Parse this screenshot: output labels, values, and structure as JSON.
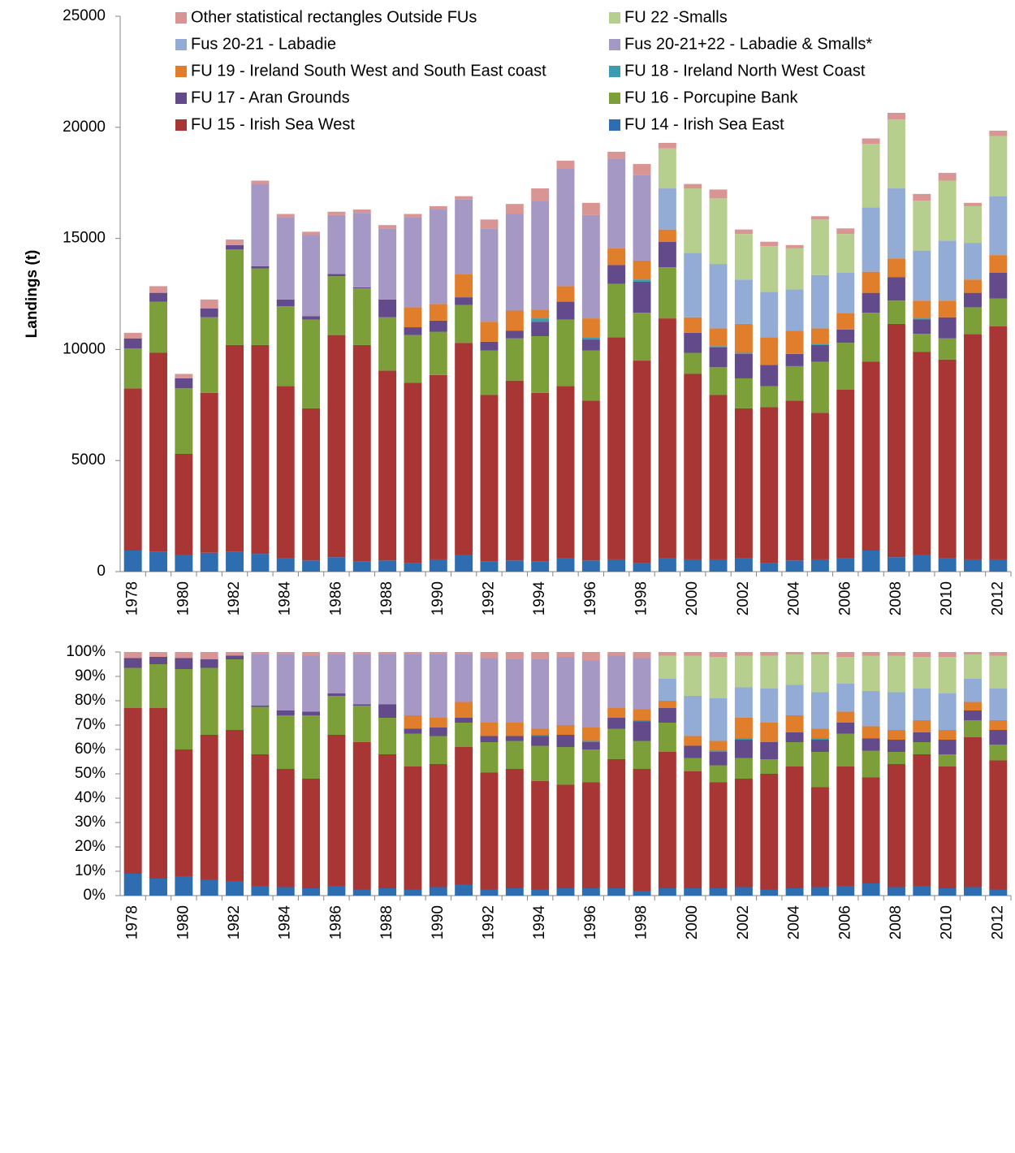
{
  "chart_data": [
    {
      "type": "stacked-bar",
      "ylabel": "Landings (t)",
      "legend": "top",
      "categories": [
        "1978",
        null,
        "1980",
        null,
        "1982",
        null,
        "1984",
        null,
        "1986",
        null,
        "1988",
        null,
        "1990",
        null,
        "1992",
        null,
        "1994",
        null,
        "1996",
        null,
        "1998",
        null,
        "2000",
        null,
        "2002",
        null,
        "2004",
        null,
        "2006",
        null,
        "2008",
        null,
        "2010",
        null,
        "2012"
      ],
      "ylim": [
        0,
        25000
      ],
      "yticks": [
        0,
        5000,
        10000,
        15000,
        20000,
        25000
      ],
      "series": [
        {
          "name": "FU 14 - Irish Sea East",
          "color": "#2e6db0",
          "values": [
            950,
            900,
            750,
            850,
            900,
            800,
            600,
            500,
            650,
            450,
            500,
            400,
            550,
            750,
            450,
            500,
            450,
            600,
            500,
            550,
            400,
            600,
            550,
            550,
            600,
            400,
            500,
            550,
            600,
            950,
            650,
            750,
            600,
            550,
            550
          ]
        },
        {
          "name": "FU 15 - Irish Sea West",
          "color": "#a83634",
          "values": [
            7300,
            8950,
            4550,
            7200,
            9300,
            9400,
            7750,
            6850,
            10000,
            9750,
            8550,
            8100,
            8300,
            9550,
            7500,
            8100,
            7600,
            7750,
            7200,
            10000,
            9100,
            10800,
            8350,
            7400,
            6750,
            7000,
            7200,
            6600,
            7600,
            8500,
            10500,
            9150,
            8950,
            10150,
            10500
          ]
        },
        {
          "name": "FU 16 - Porcupine Bank",
          "color": "#7d9f3a",
          "values": [
            1800,
            2300,
            2950,
            3400,
            4300,
            3450,
            3600,
            4000,
            2650,
            2550,
            2400,
            2150,
            1950,
            1700,
            2000,
            1900,
            2550,
            3000,
            2250,
            2400,
            2150,
            2300,
            950,
            1250,
            1350,
            950,
            1550,
            2300,
            2100,
            2200,
            1050,
            800,
            950,
            1200,
            1250
          ]
        },
        {
          "name": "FU 17 - Aran Grounds",
          "color": "#624a8b",
          "values": [
            450,
            400,
            450,
            400,
            200,
            100,
            300,
            150,
            100,
            50,
            800,
            350,
            500,
            350,
            400,
            350,
            650,
            800,
            500,
            850,
            1400,
            1150,
            900,
            900,
            1100,
            950,
            550,
            750,
            600,
            900,
            1050,
            650,
            950,
            650,
            1150
          ]
        },
        {
          "name": "FU 18 - Ireland North West Coast",
          "color": "#3a9cb0",
          "values": [
            0,
            0,
            0,
            0,
            0,
            0,
            0,
            0,
            0,
            0,
            0,
            0,
            0,
            0,
            0,
            0,
            150,
            0,
            100,
            0,
            100,
            0,
            0,
            50,
            50,
            0,
            0,
            50,
            0,
            0,
            0,
            50,
            0,
            0,
            0
          ]
        },
        {
          "name": "FU 19 - Ireland South West and South  East coast",
          "color": "#e07e2c",
          "values": [
            0,
            0,
            0,
            0,
            0,
            0,
            0,
            0,
            0,
            0,
            0,
            900,
            750,
            1050,
            900,
            900,
            400,
            700,
            850,
            750,
            850,
            550,
            700,
            800,
            1300,
            1250,
            1050,
            700,
            750,
            950,
            850,
            800,
            750,
            600,
            800
          ]
        },
        {
          "name": "Fus 20-21+22 - Labadie & Smalls*",
          "color": "#a698c4",
          "values": [
            0,
            0,
            0,
            0,
            0,
            3700,
            3700,
            3650,
            2650,
            3350,
            3200,
            4050,
            4250,
            3350,
            4200,
            4350,
            4900,
            5300,
            4650,
            4050,
            3850,
            0,
            0,
            0,
            0,
            0,
            0,
            0,
            0,
            0,
            0,
            0,
            0,
            0,
            0
          ]
        },
        {
          "name": "Fus 20-21 - Labadie",
          "color": "#93acd6",
          "values": [
            0,
            0,
            0,
            0,
            0,
            0,
            0,
            0,
            0,
            0,
            0,
            0,
            0,
            0,
            0,
            0,
            0,
            0,
            0,
            0,
            0,
            1850,
            2900,
            2900,
            2000,
            2050,
            1850,
            2400,
            1800,
            2900,
            3150,
            2250,
            2700,
            1650,
            2650
          ]
        },
        {
          "name": "FU 22  -Smalls",
          "color": "#b6cf8e",
          "values": [
            0,
            0,
            0,
            0,
            0,
            0,
            0,
            0,
            0,
            0,
            0,
            0,
            0,
            0,
            0,
            0,
            0,
            0,
            0,
            0,
            0,
            1800,
            2900,
            2950,
            2050,
            2050,
            1850,
            2500,
            1750,
            2850,
            3100,
            2250,
            2700,
            1650,
            2700
          ]
        },
        {
          "name": "Other statistical rectangles Outside FUs",
          "color": "#d99594",
          "values": [
            250,
            300,
            200,
            400,
            250,
            150,
            150,
            150,
            150,
            150,
            150,
            150,
            150,
            150,
            400,
            450,
            550,
            350,
            550,
            300,
            500,
            250,
            200,
            400,
            200,
            200,
            150,
            150,
            250,
            250,
            300,
            300,
            350,
            150,
            250
          ]
        }
      ]
    },
    {
      "type": "stacked-bar",
      "categories": [
        "1978",
        null,
        "1980",
        null,
        "1982",
        null,
        "1984",
        null,
        "1986",
        null,
        "1988",
        null,
        "1990",
        null,
        "1992",
        null,
        "1994",
        null,
        "1996",
        null,
        "1998",
        null,
        "2000",
        null,
        "2002",
        null,
        "2004",
        null,
        "2006",
        null,
        "2008",
        null,
        "2010",
        null,
        "2012"
      ],
      "ylim": [
        0,
        100
      ],
      "yticks": [
        {
          "value": 0,
          "label": "0%"
        },
        {
          "value": 10,
          "label": "10%"
        },
        {
          "value": 20,
          "label": "20%"
        },
        {
          "value": 30,
          "label": "30%"
        },
        {
          "value": 40,
          "label": "40%"
        },
        {
          "value": 50,
          "label": "50%"
        },
        {
          "value": 60,
          "label": "60%"
        },
        {
          "value": 70,
          "label": "70%"
        },
        {
          "value": 80,
          "label": "80%"
        },
        {
          "value": 90,
          "label": "90%"
        },
        {
          "value": 100,
          "label": "100%"
        }
      ],
      "series": [
        {
          "color": "#2e6db0",
          "values": [
            9,
            7,
            8,
            6.5,
            6,
            4,
            3.5,
            3,
            4,
            2.5,
            3,
            2.5,
            3.5,
            4.5,
            2.5,
            3,
            2.5,
            3,
            3,
            3,
            2,
            3,
            3,
            3,
            3.5,
            2.5,
            3,
            3.5,
            4,
            5,
            3.5,
            4,
            3,
            3.5,
            2.5
          ]
        },
        {
          "color": "#a83634",
          "values": [
            68,
            70,
            52,
            59.5,
            62,
            54,
            48.5,
            45,
            62,
            60.5,
            55,
            50.5,
            50.5,
            56.5,
            48,
            49,
            44.5,
            42.5,
            43.5,
            53,
            50,
            56,
            48,
            43.5,
            44.5,
            47.5,
            50,
            41,
            49,
            43.5,
            50.5,
            54,
            50,
            61.5,
            53
          ]
        },
        {
          "color": "#7d9f3a",
          "values": [
            16.5,
            18,
            33,
            27.5,
            29,
            19.5,
            22,
            26,
            16,
            15,
            15,
            13.5,
            11.5,
            10,
            12.5,
            11.5,
            14.5,
            15.5,
            13.5,
            12.5,
            11.5,
            12,
            5.5,
            7,
            8.5,
            6,
            10,
            14.5,
            13.5,
            11,
            5,
            5,
            5,
            7,
            6.5
          ]
        },
        {
          "color": "#624a8b",
          "values": [
            4,
            3,
            4.5,
            3.5,
            1.5,
            0.5,
            2,
            1.5,
            1,
            0.5,
            5.5,
            2,
            3.5,
            2,
            2.5,
            2,
            4,
            5,
            3,
            4.5,
            8,
            6,
            5,
            5.5,
            7.5,
            7,
            4,
            5,
            4.5,
            5,
            5,
            4,
            6,
            4,
            6
          ]
        },
        {
          "color": "#3a9cb0",
          "values": [
            0,
            0,
            0,
            0,
            0,
            0,
            0,
            0,
            0,
            0,
            0,
            0,
            0,
            0,
            0,
            0,
            0.5,
            0,
            0.5,
            0,
            0.5,
            0,
            0,
            0.5,
            0.5,
            0,
            0,
            0.5,
            0,
            0,
            0,
            0,
            0,
            0,
            0
          ]
        },
        {
          "color": "#e07e2c",
          "values": [
            0,
            0,
            0,
            0,
            0,
            0,
            0,
            0,
            0,
            0,
            0,
            5.5,
            4,
            6.5,
            5.5,
            5.5,
            2.5,
            4,
            5.5,
            4,
            4.5,
            3,
            4,
            4,
            8.5,
            8,
            7,
            4,
            4.5,
            5,
            4,
            5,
            4,
            3.5,
            4
          ]
        },
        {
          "color": "#a698c4",
          "values": [
            0,
            0,
            0,
            0,
            0,
            21,
            23,
            23,
            16,
            20.5,
            20.5,
            25,
            26,
            19.5,
            26.5,
            26,
            28.5,
            28,
            27.5,
            21.5,
            21,
            0,
            0,
            0,
            0,
            0,
            0,
            0,
            0,
            0,
            0,
            0,
            0,
            0,
            0
          ]
        },
        {
          "color": "#93acd6",
          "values": [
            0,
            0,
            0,
            0,
            0,
            0,
            0,
            0,
            0,
            0,
            0,
            0,
            0,
            0,
            0,
            0,
            0,
            0,
            0,
            0,
            0,
            9,
            16.5,
            17.5,
            12.5,
            14,
            12.5,
            15,
            11.5,
            14.5,
            15.5,
            13,
            15,
            9.5,
            13
          ]
        },
        {
          "color": "#b6cf8e",
          "values": [
            0,
            0,
            0,
            0,
            0,
            0,
            0,
            0,
            0,
            0,
            0,
            0,
            0,
            0,
            0,
            0,
            0,
            0,
            0,
            0,
            0,
            9.5,
            16.5,
            17,
            13,
            13.5,
            12.5,
            15.5,
            11,
            14.5,
            15,
            13,
            15,
            10,
            13.5
          ]
        },
        {
          "color": "#d99594",
          "values": [
            2.5,
            2,
            2.5,
            3,
            1.5,
            1,
            1,
            1.5,
            1,
            1,
            1,
            1,
            1,
            1,
            2.5,
            3,
            3,
            2,
            3.5,
            1.5,
            2.5,
            1.5,
            1.5,
            2,
            1.5,
            1.5,
            1,
            1,
            2,
            1.5,
            1.5,
            2,
            2,
            1,
            1.5
          ]
        }
      ]
    }
  ]
}
